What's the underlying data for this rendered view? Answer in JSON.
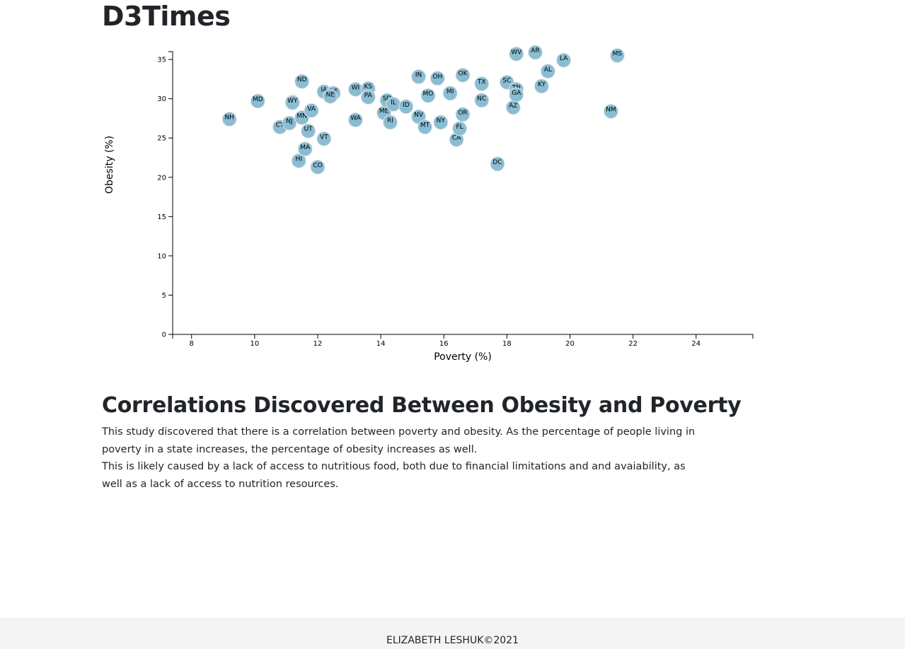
{
  "header": {
    "title": "D3Times"
  },
  "chart_data": {
    "type": "scatter",
    "xlabel": "Poverty (%)",
    "ylabel": "Obesity (%)",
    "xlim": [
      7.4,
      25.8
    ],
    "ylim": [
      0,
      36
    ],
    "x_ticks": [
      8,
      10,
      12,
      14,
      16,
      18,
      20,
      22,
      24
    ],
    "y_ticks": [
      0,
      5,
      10,
      15,
      20,
      25,
      30,
      35
    ],
    "grid": false,
    "points": [
      {
        "label": "NH",
        "x": 9.2,
        "y": 27.4
      },
      {
        "label": "MD",
        "x": 10.1,
        "y": 29.7
      },
      {
        "label": "CT",
        "x": 10.8,
        "y": 26.4
      },
      {
        "label": "NJ",
        "x": 11.1,
        "y": 26.9
      },
      {
        "label": "AK",
        "x": 11.2,
        "y": 29.6
      },
      {
        "label": "WY",
        "x": 11.2,
        "y": 29.5
      },
      {
        "label": "HI",
        "x": 11.4,
        "y": 22.1
      },
      {
        "label": "ND",
        "x": 11.5,
        "y": 32.2
      },
      {
        "label": "MN",
        "x": 11.5,
        "y": 27.6
      },
      {
        "label": "MA",
        "x": 11.6,
        "y": 23.6
      },
      {
        "label": "UT",
        "x": 11.7,
        "y": 25.9
      },
      {
        "label": "VA",
        "x": 11.8,
        "y": 28.5
      },
      {
        "label": "CO",
        "x": 12.0,
        "y": 21.3
      },
      {
        "label": "IA",
        "x": 12.2,
        "y": 30.9
      },
      {
        "label": "VT",
        "x": 12.2,
        "y": 24.9
      },
      {
        "label": "DE",
        "x": 12.5,
        "y": 30.7
      },
      {
        "label": "NE",
        "x": 12.4,
        "y": 30.3
      },
      {
        "label": "WI",
        "x": 13.2,
        "y": 31.2
      },
      {
        "label": "WA",
        "x": 13.2,
        "y": 27.3
      },
      {
        "label": "KS",
        "x": 13.6,
        "y": 31.3
      },
      {
        "label": "PA",
        "x": 13.6,
        "y": 30.2
      },
      {
        "label": "ME",
        "x": 14.1,
        "y": 28.2
      },
      {
        "label": "SD",
        "x": 14.2,
        "y": 29.8
      },
      {
        "label": "RI",
        "x": 14.3,
        "y": 27.0
      },
      {
        "label": "IL",
        "x": 14.4,
        "y": 29.3
      },
      {
        "label": "ID",
        "x": 14.8,
        "y": 29.0
      },
      {
        "label": "IN",
        "x": 15.2,
        "y": 32.8
      },
      {
        "label": "NV",
        "x": 15.2,
        "y": 27.7
      },
      {
        "label": "MT",
        "x": 15.4,
        "y": 26.4
      },
      {
        "label": "MO",
        "x": 15.5,
        "y": 30.4
      },
      {
        "label": "OH",
        "x": 15.8,
        "y": 32.6
      },
      {
        "label": "NY",
        "x": 15.9,
        "y": 27.0
      },
      {
        "label": "MI",
        "x": 16.2,
        "y": 30.7
      },
      {
        "label": "CA",
        "x": 16.4,
        "y": 24.8
      },
      {
        "label": "FL",
        "x": 16.5,
        "y": 26.2
      },
      {
        "label": "OK",
        "x": 16.6,
        "y": 33.0
      },
      {
        "label": "OR",
        "x": 16.6,
        "y": 28.0
      },
      {
        "label": "TX",
        "x": 17.2,
        "y": 31.9
      },
      {
        "label": "NC",
        "x": 17.2,
        "y": 29.8
      },
      {
        "label": "DC",
        "x": 17.7,
        "y": 21.7
      },
      {
        "label": "SC",
        "x": 18.0,
        "y": 32.1
      },
      {
        "label": "AZ",
        "x": 18.2,
        "y": 28.9
      },
      {
        "label": "TN",
        "x": 18.3,
        "y": 31.2
      },
      {
        "label": "GA",
        "x": 18.3,
        "y": 30.5
      },
      {
        "label": "WV",
        "x": 18.3,
        "y": 35.7
      },
      {
        "label": "AR",
        "x": 18.9,
        "y": 35.9
      },
      {
        "label": "KY",
        "x": 19.1,
        "y": 31.6
      },
      {
        "label": "AL",
        "x": 19.3,
        "y": 33.5
      },
      {
        "label": "LA",
        "x": 19.8,
        "y": 34.9
      },
      {
        "label": "NM",
        "x": 21.3,
        "y": 28.4
      },
      {
        "label": "MS",
        "x": 21.5,
        "y": 35.5
      }
    ]
  },
  "article": {
    "heading": "Correlations Discovered Between Obesity and Poverty",
    "paragraph1": "This study discovered that there is a correlation between poverty and obesity. As the percentage of people living in poverty in a state increases, the percentage of obesity increases as well.",
    "paragraph2": "This is likely caused by a lack of access to nutritious food, both due to financial limitations and and avaiability, as well as a lack of access to nutrition resources."
  },
  "footer": {
    "text": "ELIZABETH LESHUK©2021"
  }
}
